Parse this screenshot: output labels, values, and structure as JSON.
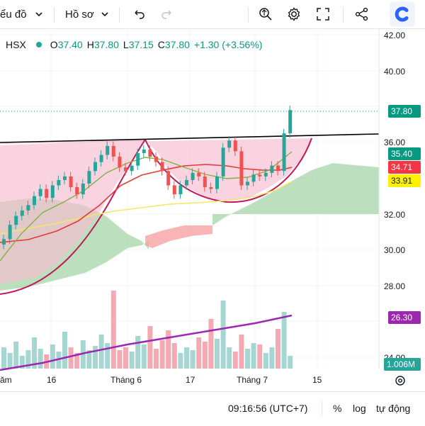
{
  "toolbar": {
    "chart_menu": "ểu đồ",
    "profile_menu": "Hồ sơ"
  },
  "legend": {
    "symbol": "HSX",
    "open_label": "O",
    "open": "37.40",
    "high_label": "H",
    "high": "37.80",
    "low_label": "L",
    "low": "37.15",
    "close_label": "C",
    "close": "37.80",
    "change": "+1.30 (+3.56%)"
  },
  "price_axis": [
    "42.00",
    "40.00",
    "38.00",
    "36.00",
    "34.00",
    "32.00",
    "30.00",
    "28.00",
    "26.00",
    "24.00"
  ],
  "time_axis": [
    "ăm",
    "16",
    "Tháng 6",
    "17",
    "Tháng 7",
    "15"
  ],
  "price_labels": [
    {
      "value": "37.80",
      "color": "#089981"
    },
    {
      "value": "35.40",
      "color": "#089981"
    },
    {
      "value": "34.71",
      "color": "#f23645"
    },
    {
      "value": "33.91",
      "color": "#fff200"
    },
    {
      "value": "26.30",
      "color": "#9c27b0"
    },
    {
      "value": "1.006M",
      "color": "#26a69a"
    }
  ],
  "status": {
    "time": "09:16:56 (UTC+7)",
    "percent": "%",
    "log": "log",
    "auto": "tự động"
  },
  "chart_data": {
    "type": "candlestick",
    "ylim": [
      24,
      42.5
    ],
    "close": [
      30.6,
      31.4,
      31.9,
      32.2,
      32.5,
      33.0,
      33.4,
      32.9,
      33.6,
      33.9,
      34.1,
      33.5,
      33.1,
      33.7,
      34.4,
      34.9,
      35.3,
      35.8,
      35.2,
      34.6,
      34.4,
      34.7,
      35.4,
      35.6,
      35.2,
      34.9,
      34.4,
      33.6,
      33.1,
      33.6,
      33.9,
      34.3,
      34.1,
      33.5,
      33.4,
      34.1,
      35.7,
      36.1,
      35.5,
      33.6,
      33.8,
      34.2,
      34.1,
      34.3,
      34.7,
      34.4,
      36.5,
      37.8
    ],
    "volume_trend": [
      22.9,
      26.3
    ]
  }
}
